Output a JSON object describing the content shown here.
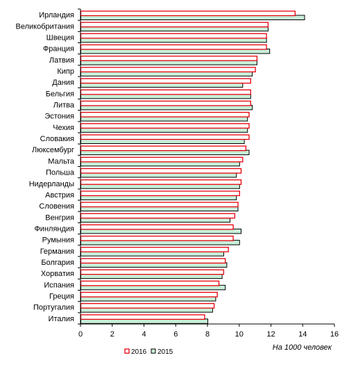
{
  "chart_data": {
    "type": "bar",
    "orientation": "horizontal",
    "categories": [
      "Ирландия",
      "Великобритания",
      "Швеция",
      "Франция",
      "Латвия",
      "Кипр",
      "Дания",
      "Бельгия",
      "Литва",
      "Эстония",
      "Чехия",
      "Словакия",
      "Люксембург",
      "Мальта",
      "Польша",
      "Нидерланды",
      "Австрия",
      "Словения",
      "Венгрия",
      "Финляндия",
      "Румыния",
      "Германия",
      "Болгария",
      "Хорватия",
      "Испания",
      "Греция",
      "Португалия",
      "Италия"
    ],
    "series": [
      {
        "name": "2016",
        "color": "#e8000b",
        "fill": "#ffffff",
        "values": [
          13.5,
          11.8,
          11.7,
          11.7,
          11.1,
          11.0,
          10.7,
          10.7,
          10.7,
          10.6,
          10.6,
          10.6,
          10.4,
          10.2,
          10.1,
          10.1,
          10.0,
          9.9,
          9.7,
          9.6,
          9.6,
          9.3,
          9.1,
          9.0,
          8.7,
          8.6,
          8.4,
          7.8
        ]
      },
      {
        "name": "2015",
        "color": "#000000",
        "fill": "#c7efd8",
        "values": [
          14.1,
          11.8,
          11.7,
          11.9,
          11.1,
          10.8,
          10.2,
          10.7,
          10.8,
          10.5,
          10.5,
          10.3,
          10.6,
          10.0,
          9.8,
          10.0,
          9.8,
          9.9,
          9.4,
          10.1,
          10.0,
          9.0,
          9.2,
          8.9,
          9.1,
          8.5,
          8.3,
          8.0
        ]
      }
    ],
    "xlim": [
      0,
      16
    ],
    "xticks": [
      0,
      2,
      4,
      6,
      8,
      10,
      12,
      14,
      16
    ],
    "unit_label": "На 1000 человек",
    "legend_position": "bottom",
    "grid": false
  }
}
